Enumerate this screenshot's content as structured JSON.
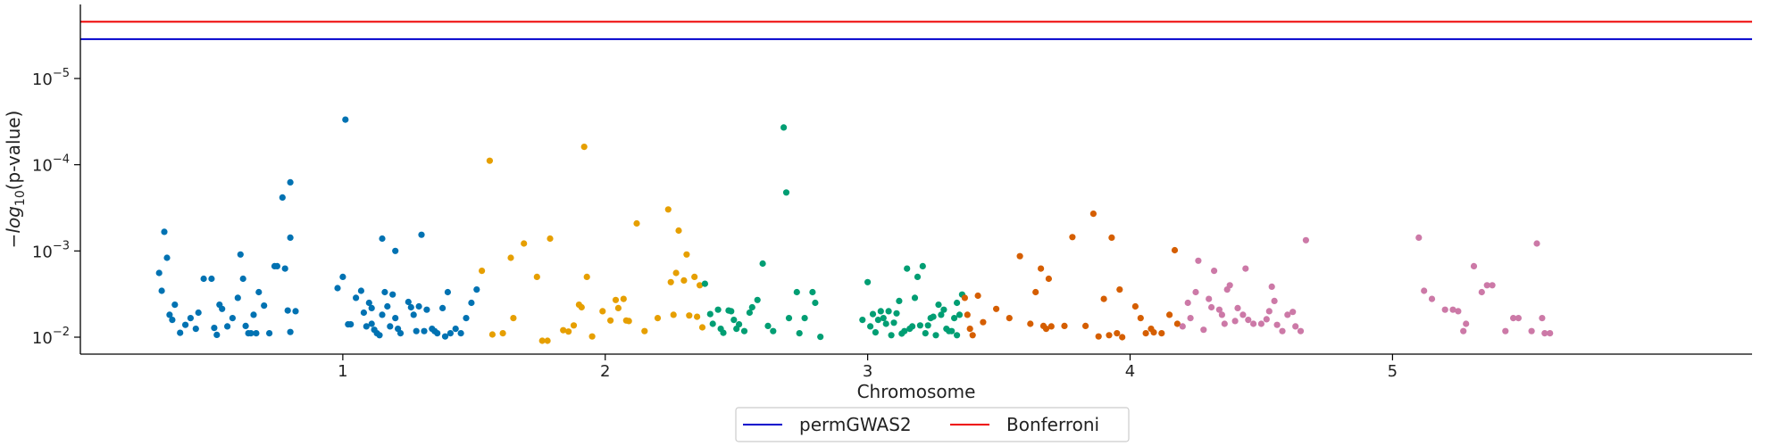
{
  "chart_data": {
    "type": "scatter",
    "title": "",
    "xlabel": "Chromosome",
    "ylabel": "−log10(p-value)",
    "y_scale": "log",
    "y_inverted": true,
    "y_ticks": [
      {
        "value": 1e-05,
        "base": "10",
        "exp": "−5"
      },
      {
        "value": 0.0001,
        "base": "10",
        "exp": "−4"
      },
      {
        "value": 0.001,
        "base": "10",
        "exp": "−3"
      },
      {
        "value": 0.01,
        "base": "10",
        "exp": "−2"
      }
    ],
    "x_ticks": [
      "1",
      "2",
      "3",
      "4",
      "5"
    ],
    "x_tick_positions": [
      1.0,
      2.0,
      3.0,
      4.0,
      5.0
    ],
    "legend": {
      "placement": "bottom-center",
      "entries": [
        {
          "name": "permGWAS2",
          "color": "#0000cc"
        },
        {
          "name": "Bonferroni",
          "color": "#ee0000"
        }
      ]
    },
    "thresholds": [
      {
        "name": "permGWAS2",
        "value": 3.5e-06,
        "color": "#0000cc"
      },
      {
        "name": "Bonferroni",
        "value": 2.2e-06,
        "color": "#ee0000"
      }
    ],
    "series": [
      {
        "chromosome": "1",
        "color": "#0072b2",
        "points": [
          [
            0.3,
            0.0018
          ],
          [
            0.32,
            0.0006
          ],
          [
            0.33,
            0.0012
          ],
          [
            0.31,
            0.0029
          ],
          [
            0.34,
            0.0055
          ],
          [
            0.35,
            0.0063
          ],
          [
            0.36,
            0.0042
          ],
          [
            0.38,
            0.0089
          ],
          [
            0.4,
            0.0072
          ],
          [
            0.42,
            0.006
          ],
          [
            0.44,
            0.008
          ],
          [
            0.45,
            0.0052
          ],
          [
            0.47,
            0.0021
          ],
          [
            0.5,
            0.0021
          ],
          [
            0.51,
            0.0078
          ],
          [
            0.52,
            0.0094
          ],
          [
            0.53,
            0.0042
          ],
          [
            0.54,
            0.0047
          ],
          [
            0.56,
            0.0075
          ],
          [
            0.58,
            0.006
          ],
          [
            0.6,
            0.0035
          ],
          [
            0.61,
            0.0011
          ],
          [
            0.62,
            0.0021
          ],
          [
            0.63,
            0.0074
          ],
          [
            0.64,
            0.009
          ],
          [
            0.65,
            0.009
          ],
          [
            0.66,
            0.0055
          ],
          [
            0.67,
            0.009
          ],
          [
            0.68,
            0.003
          ],
          [
            0.7,
            0.0043
          ],
          [
            0.72,
            0.009
          ],
          [
            0.74,
            0.0015
          ],
          [
            0.75,
            0.0015
          ],
          [
            0.77,
            0.00024
          ],
          [
            0.78,
            0.0016
          ],
          [
            0.79,
            0.0049
          ],
          [
            0.8,
            0.00016
          ],
          [
            0.8,
            0.0007
          ],
          [
            0.8,
            0.0087
          ],
          [
            0.82,
            0.005
          ],
          [
            0.98,
            0.0027
          ],
          [
            1.0,
            0.002
          ],
          [
            1.01,
            3e-05
          ],
          [
            1.02,
            0.0071
          ],
          [
            1.03,
            0.0071
          ],
          [
            1.05,
            0.0035
          ],
          [
            1.07,
            0.0029
          ],
          [
            1.08,
            0.0052
          ],
          [
            1.09,
            0.0075
          ],
          [
            1.1,
            0.004
          ],
          [
            1.11,
            0.0046
          ],
          [
            1.11,
            0.007
          ],
          [
            1.12,
            0.0082
          ],
          [
            1.13,
            0.009
          ],
          [
            1.14,
            0.0095
          ],
          [
            1.15,
            0.0055
          ],
          [
            1.15,
            0.00072
          ],
          [
            1.16,
            0.003
          ],
          [
            1.17,
            0.0044
          ],
          [
            1.18,
            0.0075
          ],
          [
            1.19,
            0.0032
          ],
          [
            1.2,
            0.006
          ],
          [
            1.2,
            0.001
          ],
          [
            1.21,
            0.008
          ],
          [
            1.22,
            0.009
          ],
          [
            1.25,
            0.0039
          ],
          [
            1.26,
            0.0045
          ],
          [
            1.27,
            0.0055
          ],
          [
            1.28,
            0.0085
          ],
          [
            1.29,
            0.0044
          ],
          [
            1.3,
            0.00065
          ],
          [
            1.31,
            0.0085
          ],
          [
            1.32,
            0.0048
          ],
          [
            1.34,
            0.008
          ],
          [
            1.35,
            0.0085
          ],
          [
            1.36,
            0.009
          ],
          [
            1.38,
            0.0046
          ],
          [
            1.39,
            0.0098
          ],
          [
            1.4,
            0.003
          ],
          [
            1.41,
            0.009
          ],
          [
            1.43,
            0.008
          ],
          [
            1.45,
            0.009
          ],
          [
            1.47,
            0.006
          ],
          [
            1.49,
            0.004
          ],
          [
            1.51,
            0.0028
          ]
        ]
      },
      {
        "chromosome": "2",
        "color": "#e69f00",
        "points": [
          [
            1.53,
            0.0017
          ],
          [
            1.56,
            9e-05
          ],
          [
            1.57,
            0.0093
          ],
          [
            1.61,
            0.009
          ],
          [
            1.64,
            0.0012
          ],
          [
            1.65,
            0.006
          ],
          [
            1.69,
            0.00082
          ],
          [
            1.74,
            0.002
          ],
          [
            1.76,
            0.011
          ],
          [
            1.78,
            0.011
          ],
          [
            1.79,
            0.00072
          ],
          [
            1.84,
            0.0083
          ],
          [
            1.86,
            0.0086
          ],
          [
            1.88,
            0.0073
          ],
          [
            1.9,
            0.0042
          ],
          [
            1.91,
            0.0045
          ],
          [
            1.92,
            6.2e-05
          ],
          [
            1.93,
            0.002
          ],
          [
            1.95,
            0.0098
          ],
          [
            1.99,
            0.005
          ],
          [
            2.02,
            0.0064
          ],
          [
            2.04,
            0.0037
          ],
          [
            2.05,
            0.0046
          ],
          [
            2.07,
            0.0036
          ],
          [
            2.08,
            0.0064
          ],
          [
            2.09,
            0.0065
          ],
          [
            2.12,
            0.00048
          ],
          [
            2.15,
            0.0085
          ],
          [
            2.2,
            0.006
          ],
          [
            2.24,
            0.00033
          ],
          [
            2.25,
            0.0023
          ],
          [
            2.26,
            0.0055
          ],
          [
            2.27,
            0.0018
          ],
          [
            2.28,
            0.00058
          ],
          [
            2.3,
            0.0022
          ],
          [
            2.31,
            0.0011
          ],
          [
            2.32,
            0.0056
          ],
          [
            2.34,
            0.002
          ],
          [
            2.35,
            0.0058
          ],
          [
            2.36,
            0.0025
          ],
          [
            2.37,
            0.0077
          ]
        ]
      },
      {
        "chromosome": "3",
        "color": "#009e73",
        "points": [
          [
            2.38,
            0.0024
          ],
          [
            2.4,
            0.0054
          ],
          [
            2.41,
            0.007
          ],
          [
            2.43,
            0.0048
          ],
          [
            2.44,
            0.008
          ],
          [
            2.45,
            0.0089
          ],
          [
            2.47,
            0.0049
          ],
          [
            2.48,
            0.005
          ],
          [
            2.49,
            0.0063
          ],
          [
            2.5,
            0.008
          ],
          [
            2.51,
            0.0071
          ],
          [
            2.53,
            0.0085
          ],
          [
            2.55,
            0.0052
          ],
          [
            2.56,
            0.0045
          ],
          [
            2.58,
            0.0037
          ],
          [
            2.6,
            0.0014
          ],
          [
            2.62,
            0.0074
          ],
          [
            2.64,
            0.0085
          ],
          [
            2.68,
            3.7e-05
          ],
          [
            2.69,
            0.00021
          ],
          [
            2.7,
            0.006
          ],
          [
            2.73,
            0.003
          ],
          [
            2.74,
            0.009
          ],
          [
            2.76,
            0.006
          ],
          [
            2.79,
            0.003
          ],
          [
            2.8,
            0.004
          ],
          [
            2.82,
            0.0099
          ],
          [
            2.98,
            0.0063
          ],
          [
            3.0,
            0.0023
          ],
          [
            3.01,
            0.0075
          ],
          [
            3.02,
            0.0054
          ],
          [
            3.03,
            0.0088
          ],
          [
            3.04,
            0.0063
          ],
          [
            3.05,
            0.005
          ],
          [
            3.06,
            0.006
          ],
          [
            3.07,
            0.007
          ],
          [
            3.08,
            0.005
          ],
          [
            3.09,
            0.0095
          ],
          [
            3.1,
            0.0068
          ],
          [
            3.11,
            0.0053
          ],
          [
            3.12,
            0.0038
          ],
          [
            3.13,
            0.0091
          ],
          [
            3.14,
            0.0085
          ],
          [
            3.15,
            0.0016
          ],
          [
            3.16,
            0.008
          ],
          [
            3.17,
            0.0075
          ],
          [
            3.18,
            0.0035
          ],
          [
            3.19,
            0.002
          ],
          [
            3.2,
            0.0073
          ],
          [
            3.21,
            0.0015
          ],
          [
            3.22,
            0.009
          ],
          [
            3.23,
            0.0073
          ],
          [
            3.24,
            0.006
          ],
          [
            3.25,
            0.0058
          ],
          [
            3.26,
            0.0095
          ],
          [
            3.27,
            0.0042
          ],
          [
            3.28,
            0.0055
          ],
          [
            3.29,
            0.0048
          ],
          [
            3.3,
            0.008
          ],
          [
            3.31,
            0.0085
          ],
          [
            3.32,
            0.0085
          ],
          [
            3.33,
            0.006
          ],
          [
            3.34,
            0.004
          ],
          [
            3.34,
            0.0095
          ],
          [
            3.35,
            0.0055
          ],
          [
            3.36,
            0.0032
          ]
        ]
      },
      {
        "chromosome": "4",
        "color": "#d55e00",
        "points": [
          [
            3.37,
            0.0035
          ],
          [
            3.38,
            0.0055
          ],
          [
            3.39,
            0.008
          ],
          [
            3.4,
            0.0095
          ],
          [
            3.42,
            0.0033
          ],
          [
            3.44,
            0.0067
          ],
          [
            3.49,
            0.0047
          ],
          [
            3.54,
            0.006
          ],
          [
            3.58,
            0.00115
          ],
          [
            3.62,
            0.007
          ],
          [
            3.64,
            0.003
          ],
          [
            3.66,
            0.0016
          ],
          [
            3.67,
            0.0074
          ],
          [
            3.68,
            0.008
          ],
          [
            3.69,
            0.0021
          ],
          [
            3.7,
            0.0075
          ],
          [
            3.75,
            0.0074
          ],
          [
            3.78,
            0.00069
          ],
          [
            3.83,
            0.0074
          ],
          [
            3.86,
            0.00037
          ],
          [
            3.88,
            0.0098
          ],
          [
            3.9,
            0.0036
          ],
          [
            3.92,
            0.0095
          ],
          [
            3.93,
            0.0007
          ],
          [
            3.95,
            0.009
          ],
          [
            3.96,
            0.0028
          ],
          [
            3.97,
            0.01
          ],
          [
            4.02,
            0.0044
          ],
          [
            4.04,
            0.006
          ],
          [
            4.06,
            0.009
          ],
          [
            4.08,
            0.008
          ],
          [
            4.09,
            0.0088
          ],
          [
            4.12,
            0.009
          ],
          [
            4.15,
            0.0055
          ],
          [
            4.17,
            0.00098
          ],
          [
            4.18,
            0.007
          ]
        ]
      },
      {
        "chromosome": "5",
        "color": "#cc79a7",
        "points": [
          [
            4.2,
            0.0075
          ],
          [
            4.22,
            0.004
          ],
          [
            4.23,
            0.006
          ],
          [
            4.25,
            0.003
          ],
          [
            4.26,
            0.0013
          ],
          [
            4.28,
            0.0082
          ],
          [
            4.3,
            0.0036
          ],
          [
            4.31,
            0.0045
          ],
          [
            4.32,
            0.0017
          ],
          [
            4.34,
            0.0048
          ],
          [
            4.35,
            0.0055
          ],
          [
            4.36,
            0.007
          ],
          [
            4.37,
            0.0028
          ],
          [
            4.38,
            0.0025
          ],
          [
            4.4,
            0.0065
          ],
          [
            4.41,
            0.0046
          ],
          [
            4.43,
            0.0055
          ],
          [
            4.44,
            0.0016
          ],
          [
            4.45,
            0.0063
          ],
          [
            4.47,
            0.007
          ],
          [
            4.5,
            0.007
          ],
          [
            4.52,
            0.0062
          ],
          [
            4.53,
            0.005
          ],
          [
            4.54,
            0.0026
          ],
          [
            4.55,
            0.0038
          ],
          [
            4.56,
            0.0072
          ],
          [
            4.58,
            0.0085
          ],
          [
            4.6,
            0.0055
          ],
          [
            4.62,
            0.0051
          ],
          [
            4.63,
            0.0075
          ],
          [
            4.65,
            0.0085
          ],
          [
            4.67,
            0.00075
          ],
          [
            5.1,
            0.0007
          ],
          [
            5.12,
            0.0029
          ],
          [
            5.15,
            0.0036
          ],
          [
            5.2,
            0.0048
          ],
          [
            5.23,
            0.0048
          ],
          [
            5.25,
            0.005
          ],
          [
            5.27,
            0.0085
          ],
          [
            5.28,
            0.007
          ],
          [
            5.31,
            0.0015
          ],
          [
            5.34,
            0.003
          ],
          [
            5.36,
            0.0025
          ],
          [
            5.38,
            0.0025
          ],
          [
            5.43,
            0.0085
          ],
          [
            5.46,
            0.006
          ],
          [
            5.48,
            0.006
          ],
          [
            5.53,
            0.0085
          ],
          [
            5.55,
            0.00082
          ],
          [
            5.57,
            0.006
          ],
          [
            5.58,
            0.009
          ],
          [
            5.6,
            0.009
          ]
        ]
      }
    ]
  }
}
